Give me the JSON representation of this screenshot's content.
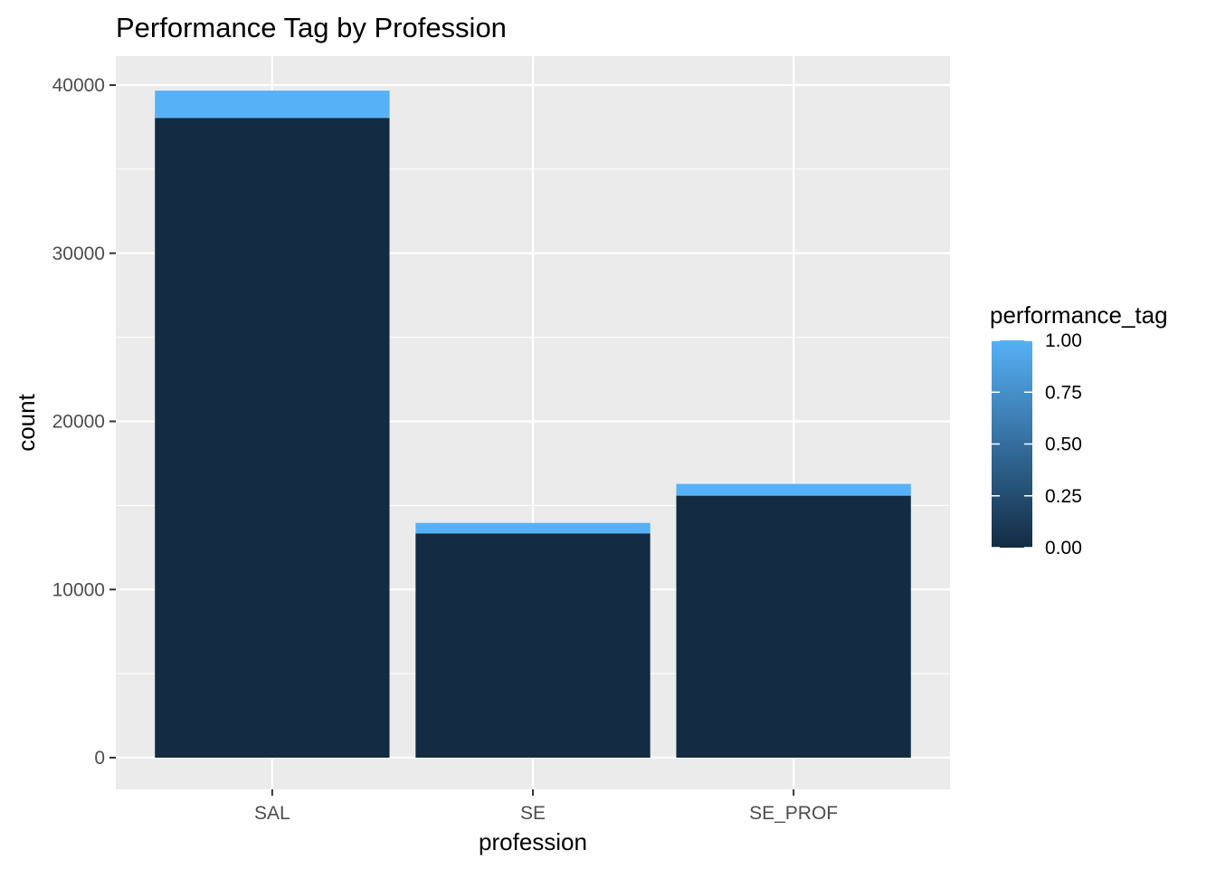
{
  "chart_data": {
    "type": "bar",
    "stacked": true,
    "title": "Performance Tag by Profession",
    "xlabel": "profession",
    "ylabel": "count",
    "categories": [
      "SAL",
      "SE",
      "SE_PROF"
    ],
    "series": [
      {
        "name": "0.00",
        "color": "#132b43",
        "values": [
          38050,
          13340,
          15580
        ]
      },
      {
        "name": "1.00",
        "color": "#56b1f7",
        "values": [
          1620,
          620,
          700
        ]
      }
    ],
    "ylim": [
      0,
      40000
    ],
    "yticks": [
      "0",
      "10000",
      "20000",
      "30000",
      "40000"
    ],
    "grid": true,
    "background": "#ebebeb",
    "legend": {
      "title": "performance_tag",
      "placement": "right",
      "type": "colorbar",
      "range": [
        0,
        1
      ],
      "color_low": "#132b43",
      "color_high": "#56b1f7",
      "labels": [
        "1.00",
        "0.75",
        "0.50",
        "0.25",
        "0.00"
      ]
    }
  }
}
